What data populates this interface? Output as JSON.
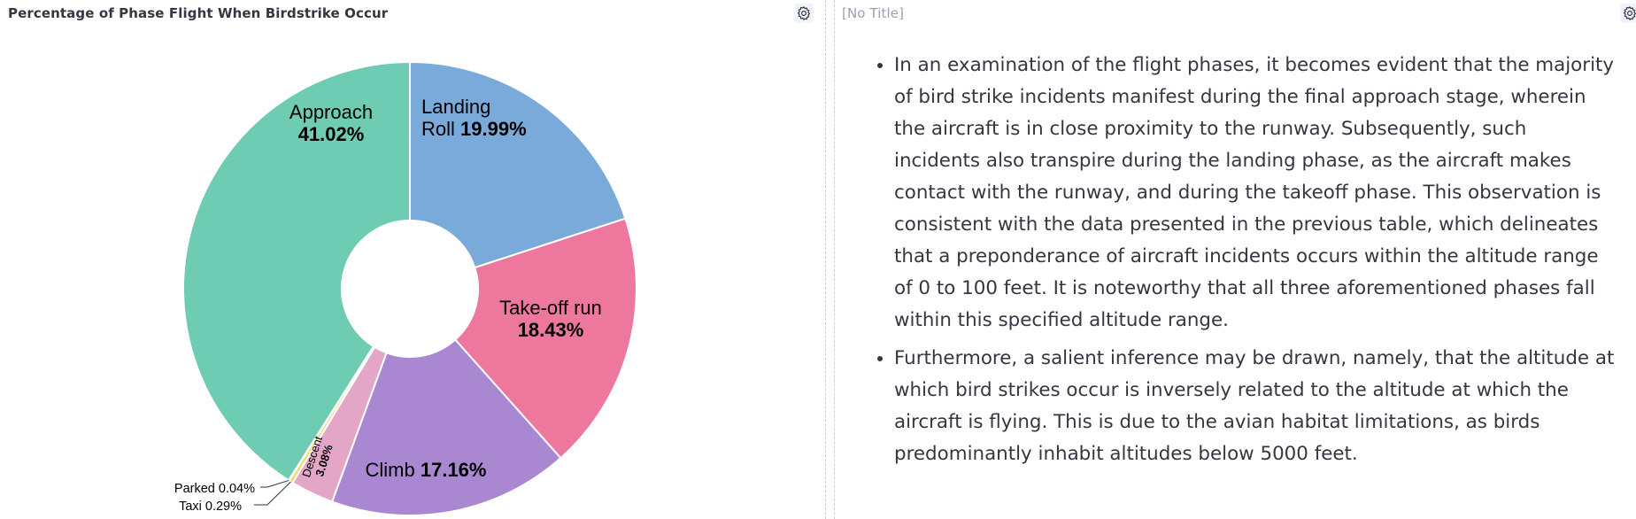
{
  "left_panel": {
    "title": "Percentage of Phase Flight When Birdstrike Occur",
    "settings_icon": "gear-icon"
  },
  "right_panel": {
    "title": "[No Title]",
    "settings_icon": "gear-icon",
    "bullets": [
      "In an examination of the flight phases, it becomes evident that the majority of bird strike incidents manifest during the final approach stage, wherein the aircraft is in close proximity to the runway. Subsequently, such incidents also transpire during the landing phase, as the aircraft makes contact with the runway, and during the takeoff phase. This observation is consistent with the data presented in the previous table, which delineates that a preponderance of aircraft incidents occurs within the altitude range of 0 to 100 feet. It is noteworthy that all three aforementioned phases fall within this specified altitude range.",
      "Furthermore, a salient inference may be drawn, namely, that the altitude at which bird strikes occur is inversely related to the altitude at which the aircraft is flying. This is due to the avian habitat limitations, as birds predominantly inhabit altitudes below 5000 feet."
    ]
  },
  "chart_data": {
    "type": "pie",
    "donut": true,
    "title": "Percentage of Phase Flight When Birdstrike Occur",
    "slices": [
      {
        "name": "Landing Roll",
        "value": 19.99,
        "label": "19.99%",
        "color": "#79aad9"
      },
      {
        "name": "Take-off run",
        "value": 18.43,
        "label": "18.43%",
        "color": "#ee789d"
      },
      {
        "name": "Climb",
        "value": 17.16,
        "label": "17.16%",
        "color": "#a987d1"
      },
      {
        "name": "Descent",
        "value": 3.08,
        "label": "3.08%",
        "color": "#e4a6c7"
      },
      {
        "name": "Taxi",
        "value": 0.29,
        "label": "0.29%",
        "color": "#f1d86f"
      },
      {
        "name": "Parked",
        "value": 0.04,
        "label": "0.04%",
        "color": "#b9a888"
      },
      {
        "name": "Approach",
        "value": 41.02,
        "label": "41.02%",
        "color": "#6dccb1"
      }
    ]
  }
}
